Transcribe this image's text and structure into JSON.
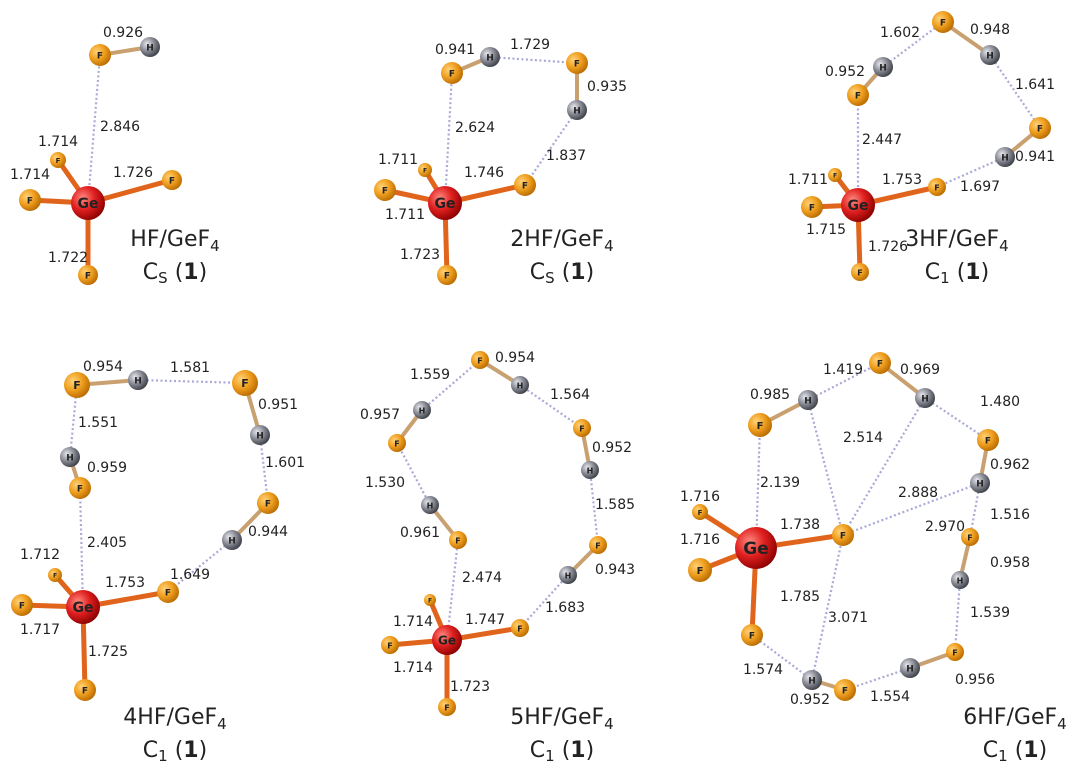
{
  "panels": [
    {
      "title": {
        "main": "HF/GeF",
        "sub": "4"
      },
      "symmetry": {
        "letter": "C",
        "sub": "S",
        "open": " (",
        "num": "1",
        "close": ")"
      },
      "atoms": [
        "Ge",
        "F",
        "H",
        "F",
        "F",
        "F",
        "F"
      ],
      "bond_lengths": [
        "0.926",
        "2.846",
        "1.714",
        "1.714",
        "1.726",
        "1.722"
      ]
    },
    {
      "title": {
        "main": "2HF/GeF",
        "sub": "4"
      },
      "symmetry": {
        "letter": "C",
        "sub": "S",
        "open": " (",
        "num": "1",
        "close": ")"
      },
      "atoms": [
        "Ge",
        "F",
        "H",
        "F",
        "H",
        "F",
        "F",
        "F",
        "F"
      ],
      "bond_lengths": [
        "0.941",
        "1.729",
        "0.935",
        "2.624",
        "1.837",
        "1.711",
        "1.746",
        "1.711",
        "1.723"
      ]
    },
    {
      "title": {
        "main": "3HF/GeF",
        "sub": "4"
      },
      "symmetry": {
        "letter": "C",
        "sub": "1",
        "open": " (",
        "num": "1",
        "close": ")"
      },
      "atoms": [
        "Ge",
        "F",
        "H",
        "F",
        "H",
        "F",
        "H",
        "F",
        "F",
        "F",
        "F"
      ],
      "bond_lengths": [
        "0.952",
        "1.602",
        "0.948",
        "1.641",
        "0.941",
        "2.447",
        "1.711",
        "1.753",
        "1.697",
        "1.715",
        "1.726"
      ]
    },
    {
      "title": {
        "main": "4HF/GeF",
        "sub": "4"
      },
      "symmetry": {
        "letter": "C",
        "sub": "1",
        "open": " (",
        "num": "1",
        "close": ")"
      },
      "atoms": [
        "Ge",
        "F",
        "H",
        "F",
        "H",
        "F",
        "H",
        "F",
        "H",
        "F",
        "F",
        "F",
        "F"
      ],
      "bond_lengths": [
        "0.954",
        "1.581",
        "0.951",
        "1.551",
        "0.959",
        "1.601",
        "0.944",
        "2.405",
        "1.712",
        "1.753",
        "1.649",
        "1.717",
        "1.725"
      ]
    },
    {
      "title": {
        "main": "5HF/GeF",
        "sub": "4"
      },
      "symmetry": {
        "letter": "C",
        "sub": "1",
        "open": " (",
        "num": "1",
        "close": ")"
      },
      "atoms": [
        "Ge",
        "F",
        "H",
        "F",
        "H",
        "F",
        "H",
        "F",
        "H",
        "F",
        "H",
        "F",
        "F",
        "F",
        "F"
      ],
      "bond_lengths": [
        "1.559",
        "0.954",
        "0.957",
        "1.564",
        "0.952",
        "1.530",
        "1.585",
        "0.961",
        "2.474",
        "0.943",
        "1.714",
        "1.747",
        "1.683",
        "1.714",
        "1.723"
      ]
    },
    {
      "title": {
        "main": "6HF/GeF",
        "sub": "4"
      },
      "symmetry": {
        "letter": "C",
        "sub": "1",
        "open": " (",
        "num": "1",
        "close": ")"
      },
      "atoms": [
        "Ge",
        "F",
        "H",
        "F",
        "H",
        "F",
        "H",
        "F",
        "H",
        "F",
        "H",
        "F",
        "H",
        "F",
        "F",
        "F",
        "F"
      ],
      "bond_lengths": [
        "1.419",
        "0.969",
        "0.985",
        "1.480",
        "2.514",
        "2.888",
        "0.962",
        "2.139",
        "1.716",
        "1.738",
        "2.970",
        "1.516",
        "1.716",
        "0.958",
        "1.785",
        "3.071",
        "1.539",
        "1.574",
        "0.956",
        "0.952",
        "1.554"
      ]
    }
  ]
}
